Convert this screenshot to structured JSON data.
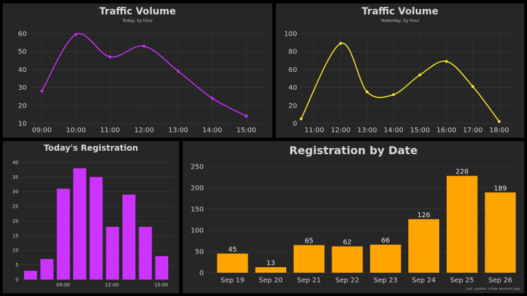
{
  "colors": {
    "panel_bg": "#262626",
    "grid": "#3a3a3a",
    "axis_text": "#cfcfcf",
    "magenta": "#cc33ff",
    "yellow": "#ffee22",
    "orange": "#ffa500"
  },
  "footer": "Last update: a few seconds ago",
  "chart_data": [
    {
      "id": "traffic-today",
      "type": "line",
      "title": "Traffic Volume",
      "subtitle": "Today, by hour",
      "categories": [
        "09:00",
        "10:00",
        "11:00",
        "12:00",
        "13:00",
        "14:00",
        "15:00"
      ],
      "values": [
        28,
        59.5,
        47,
        53,
        39,
        24,
        14
      ],
      "ylim": [
        10,
        60
      ],
      "yticks": [
        10,
        20,
        30,
        40,
        50,
        60
      ],
      "color": "#cc33ff",
      "grid": true
    },
    {
      "id": "traffic-yesterday",
      "type": "line",
      "title": "Traffic Volume",
      "subtitle": "Yesterday, by hour",
      "x": [
        10.5,
        12,
        13,
        14,
        15,
        16,
        17,
        18
      ],
      "values": [
        5,
        89,
        35,
        32,
        54,
        69,
        41,
        2
      ],
      "xticks": [
        "11:00",
        "12:00",
        "13:00",
        "14:00",
        "15:00",
        "16:00",
        "17:00",
        "18:00"
      ],
      "ylim": [
        0,
        100
      ],
      "yticks": [
        0,
        20,
        40,
        60,
        80,
        100
      ],
      "color": "#ffee22",
      "grid": true
    },
    {
      "id": "today-registration",
      "type": "bar",
      "title": "Today's Registration",
      "values": [
        3,
        7,
        31,
        38,
        35,
        18,
        29,
        18,
        8
      ],
      "xticks": [
        "09:00",
        "12:00",
        "15:00"
      ],
      "ylim": [
        0,
        40
      ],
      "yticks": [
        0,
        5,
        10,
        15,
        20,
        25,
        30,
        35,
        40
      ],
      "color": "#cc33ff",
      "grid": true
    },
    {
      "id": "registration-by-date",
      "type": "bar",
      "title": "Registration by Date",
      "categories": [
        "Sep 19",
        "Sep 20",
        "Sep 21",
        "Sep 22",
        "Sep 23",
        "Sep 24",
        "Sep 25",
        "Sep 26"
      ],
      "values": [
        45,
        13,
        65,
        62,
        66,
        126,
        228,
        189
      ],
      "ylim": [
        0,
        250
      ],
      "yticks": [
        0,
        50,
        100,
        150,
        200,
        250
      ],
      "color": "#ffa500",
      "data_labels": true,
      "grid": true
    }
  ]
}
